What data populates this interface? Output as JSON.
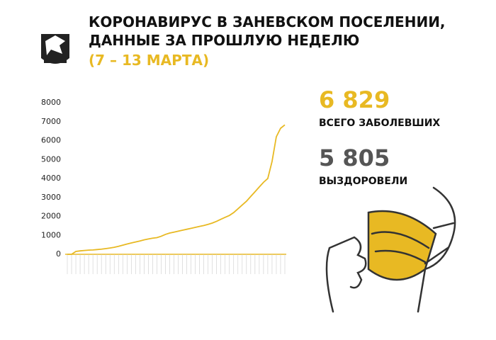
{
  "header": {
    "title_line1": "КОРОНАВИРУС В ЗАНЕВСКОМ ПОСЕЛЕНИИ,",
    "title_line2": "ДАННЫЕ ЗА ПРОШЛУЮ НЕДЕЛЮ",
    "subtitle": "(7 – 13 МАРТА)"
  },
  "stats": {
    "total_value": "6 829",
    "total_label": "ВСЕГО ЗАБОЛЕВШИХ",
    "recovered_value": "5 805",
    "recovered_label": "ВЫЗДОРОВЕЛИ"
  },
  "chart_data": {
    "type": "line",
    "color": "#e8b923",
    "categories": [
      null,
      null,
      null,
      null,
      null,
      null,
      null,
      null,
      null,
      null,
      null,
      null,
      null,
      null,
      null,
      null,
      null,
      null,
      null,
      null,
      null,
      null,
      null,
      null,
      null,
      null,
      null,
      null,
      null,
      null,
      null,
      null,
      null,
      null,
      null,
      null,
      null,
      null,
      null,
      null,
      null,
      null,
      null,
      null,
      null,
      null,
      null,
      null,
      null,
      null,
      null,
      null
    ],
    "values": [
      0,
      0,
      150,
      180,
      200,
      220,
      230,
      250,
      270,
      300,
      330,
      370,
      420,
      480,
      540,
      600,
      650,
      700,
      760,
      810,
      850,
      880,
      950,
      1050,
      1120,
      1170,
      1220,
      1270,
      1320,
      1370,
      1420,
      1470,
      1520,
      1580,
      1650,
      1740,
      1850,
      1950,
      2050,
      2200,
      2400,
      2600,
      2800,
      3050,
      3300,
      3550,
      3800,
      4000,
      4900,
      6200,
      6650,
      6829
    ],
    "ylim": [
      0,
      8000
    ],
    "yticks": [
      0,
      1000,
      2000,
      3000,
      4000,
      5000,
      6000,
      7000,
      8000
    ]
  }
}
